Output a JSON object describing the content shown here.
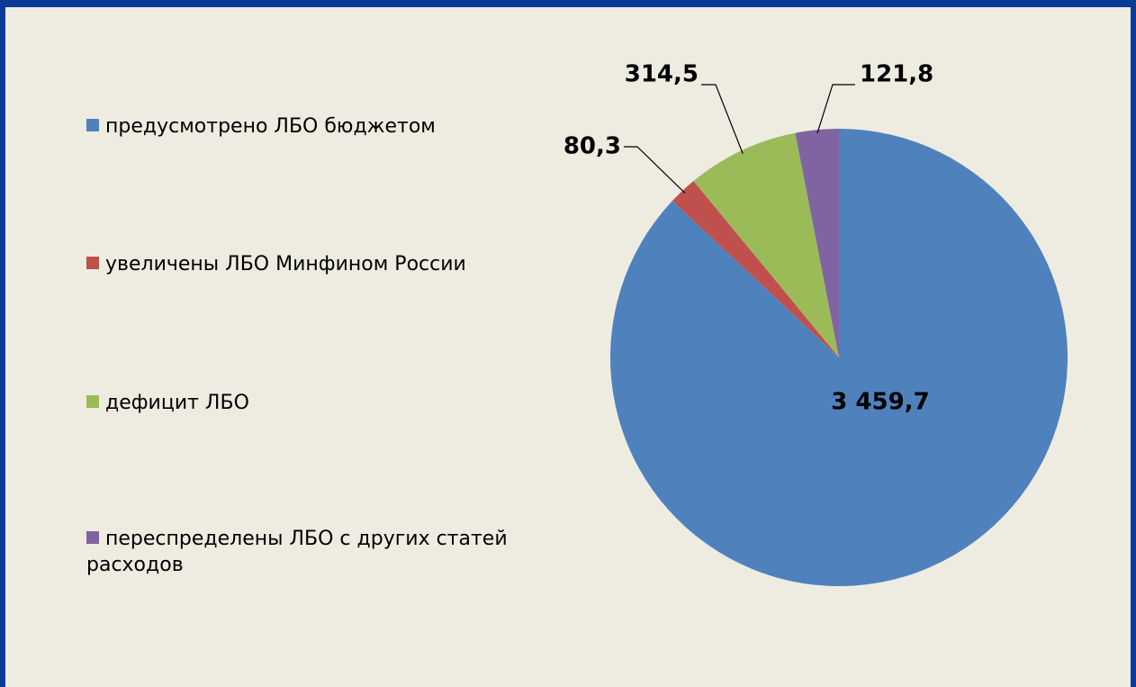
{
  "chart_data": {
    "type": "pie",
    "categories": [
      "предусмотрено ЛБО бюджетом",
      "увеличены ЛБО Минфином России",
      "дефицит ЛБО",
      "переспределены ЛБО с других статей расходов"
    ],
    "values": [
      3459.7,
      80.3,
      314.5,
      121.8
    ],
    "value_labels": [
      "3 459,7",
      "80,3",
      "314,5",
      "121,8"
    ],
    "colors": [
      "#4f81bd",
      "#c0504d",
      "#9bbb59",
      "#8064a2"
    ],
    "legend": "left"
  }
}
